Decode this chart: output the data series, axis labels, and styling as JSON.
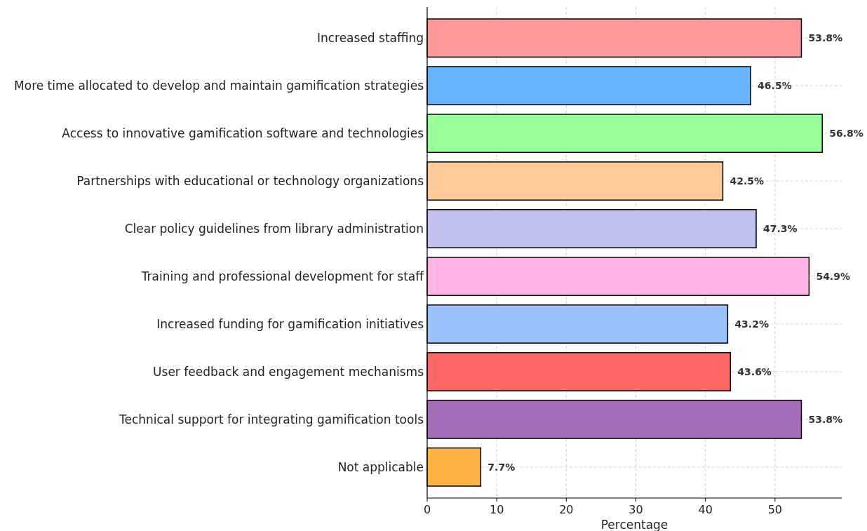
{
  "chart_data": {
    "type": "bar",
    "orientation": "horizontal",
    "xlabel": "Percentage",
    "categories": [
      "Increased staffing",
      "More time allocated to develop and maintain gamification strategies",
      "Access to innovative gamification software and technologies",
      "Partnerships with educational or technology organizations",
      "Clear policy guidelines from library administration",
      "Training and professional development for staff",
      "Increased funding for gamification initiatives",
      "User feedback and engagement mechanisms",
      "Technical support for integrating gamification tools",
      "Not applicable"
    ],
    "values": [
      53.8,
      46.5,
      56.8,
      42.5,
      47.3,
      54.9,
      43.2,
      43.6,
      53.8,
      7.7
    ],
    "colors": [
      "#ff9999",
      "#66b3ff",
      "#99ff99",
      "#ffcc99",
      "#c2c2f0",
      "#ffb3e6",
      "#99c2ff",
      "#ff6666",
      "#a36db8",
      "#ffb347"
    ],
    "value_labels": [
      "53.8%",
      "46.5%",
      "56.8%",
      "42.5%",
      "47.3%",
      "54.9%",
      "43.2%",
      "43.6%",
      "53.8%",
      "7.7%"
    ],
    "xlim": [
      0,
      59.6
    ],
    "xticks": [
      0,
      10,
      20,
      30,
      40,
      50
    ],
    "grid": true
  }
}
